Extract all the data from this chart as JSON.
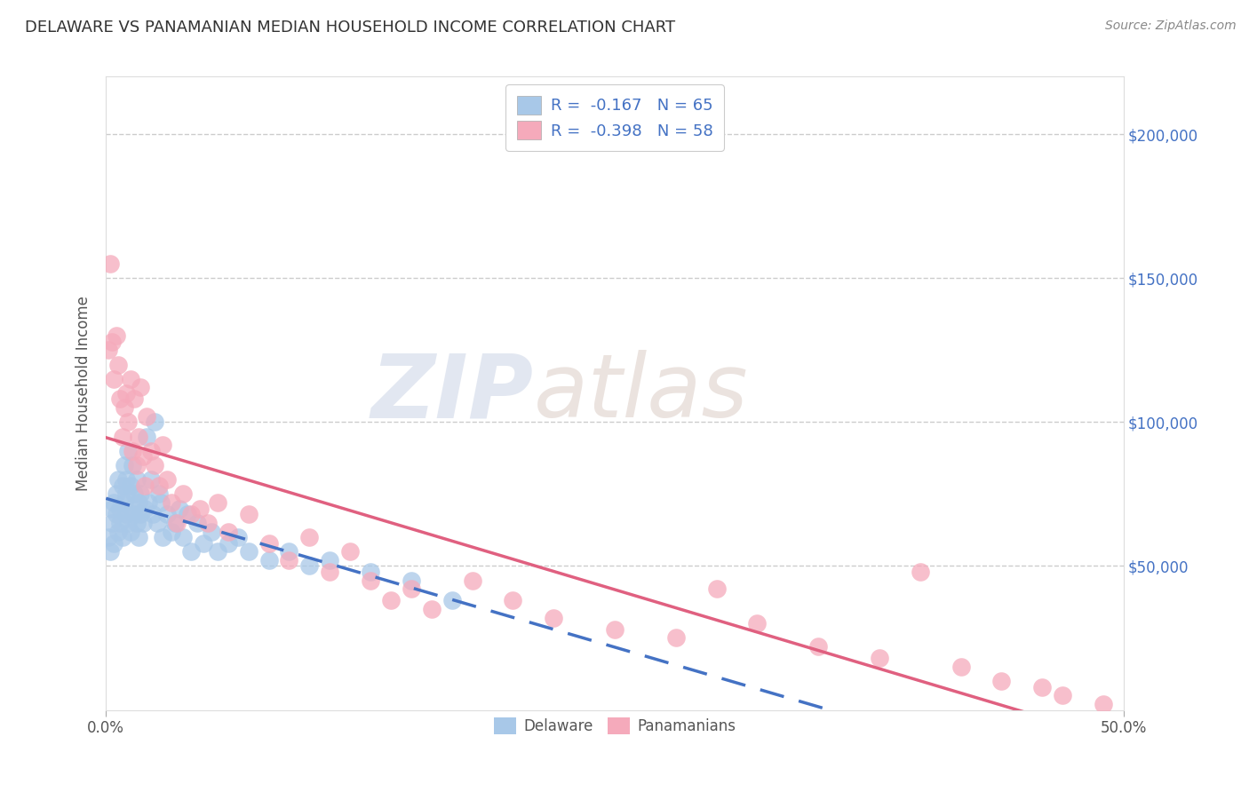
{
  "title": "DELAWARE VS PANAMANIAN MEDIAN HOUSEHOLD INCOME CORRELATION CHART",
  "source": "Source: ZipAtlas.com",
  "ylabel": "Median Household Income",
  "ytick_labels": [
    "$50,000",
    "$100,000",
    "$150,000",
    "$200,000"
  ],
  "ytick_values": [
    50000,
    100000,
    150000,
    200000
  ],
  "ylim": [
    0,
    220000
  ],
  "xlim": [
    0.0,
    0.5
  ],
  "legend_line1": "R =  -0.167   N = 65",
  "legend_line2": "R =  -0.398   N = 58",
  "delaware_color": "#a8c8e8",
  "panamanian_color": "#f5aabb",
  "delaware_line_color": "#4472c4",
  "panamanian_line_color": "#e06080",
  "watermark_zip": "ZIP",
  "watermark_atlas": "atlas",
  "background_color": "#ffffff",
  "grid_color": "#cccccc",
  "title_color": "#333333",
  "axis_label_color": "#555555",
  "right_ytick_color": "#4472c4",
  "legend_text_color": "#4472c4",
  "legend_border_color": "#cccccc",
  "delaware_x": [
    0.001,
    0.002,
    0.003,
    0.003,
    0.004,
    0.004,
    0.005,
    0.005,
    0.006,
    0.006,
    0.007,
    0.007,
    0.008,
    0.008,
    0.009,
    0.009,
    0.01,
    0.01,
    0.01,
    0.011,
    0.011,
    0.012,
    0.012,
    0.013,
    0.013,
    0.014,
    0.014,
    0.015,
    0.015,
    0.016,
    0.016,
    0.017,
    0.017,
    0.018,
    0.019,
    0.02,
    0.021,
    0.022,
    0.023,
    0.024,
    0.025,
    0.026,
    0.027,
    0.028,
    0.03,
    0.032,
    0.034,
    0.036,
    0.038,
    0.04,
    0.042,
    0.045,
    0.048,
    0.052,
    0.055,
    0.06,
    0.065,
    0.07,
    0.08,
    0.09,
    0.1,
    0.11,
    0.13,
    0.15,
    0.17
  ],
  "delaware_y": [
    60000,
    55000,
    65000,
    70000,
    72000,
    58000,
    75000,
    68000,
    80000,
    62000,
    70000,
    65000,
    78000,
    60000,
    85000,
    72000,
    80000,
    68000,
    75000,
    65000,
    90000,
    78000,
    62000,
    70000,
    85000,
    68000,
    75000,
    65000,
    80000,
    72000,
    60000,
    68000,
    75000,
    65000,
    70000,
    95000,
    72000,
    80000,
    68000,
    100000,
    65000,
    75000,
    72000,
    60000,
    68000,
    62000,
    65000,
    70000,
    60000,
    68000,
    55000,
    65000,
    58000,
    62000,
    55000,
    58000,
    60000,
    55000,
    52000,
    55000,
    50000,
    52000,
    48000,
    45000,
    38000
  ],
  "panamanian_x": [
    0.001,
    0.002,
    0.003,
    0.004,
    0.005,
    0.006,
    0.007,
    0.008,
    0.009,
    0.01,
    0.011,
    0.012,
    0.013,
    0.014,
    0.015,
    0.016,
    0.017,
    0.018,
    0.019,
    0.02,
    0.022,
    0.024,
    0.026,
    0.028,
    0.03,
    0.032,
    0.035,
    0.038,
    0.042,
    0.046,
    0.05,
    0.055,
    0.06,
    0.07,
    0.08,
    0.09,
    0.1,
    0.11,
    0.12,
    0.13,
    0.14,
    0.15,
    0.16,
    0.18,
    0.2,
    0.22,
    0.25,
    0.28,
    0.3,
    0.32,
    0.35,
    0.38,
    0.4,
    0.42,
    0.44,
    0.46,
    0.47,
    0.49
  ],
  "panamanian_y": [
    125000,
    155000,
    128000,
    115000,
    130000,
    120000,
    108000,
    95000,
    105000,
    110000,
    100000,
    115000,
    90000,
    108000,
    85000,
    95000,
    112000,
    88000,
    78000,
    102000,
    90000,
    85000,
    78000,
    92000,
    80000,
    72000,
    65000,
    75000,
    68000,
    70000,
    65000,
    72000,
    62000,
    68000,
    58000,
    52000,
    60000,
    48000,
    55000,
    45000,
    38000,
    42000,
    35000,
    45000,
    38000,
    32000,
    28000,
    25000,
    42000,
    30000,
    22000,
    18000,
    48000,
    15000,
    10000,
    8000,
    5000,
    2000
  ]
}
